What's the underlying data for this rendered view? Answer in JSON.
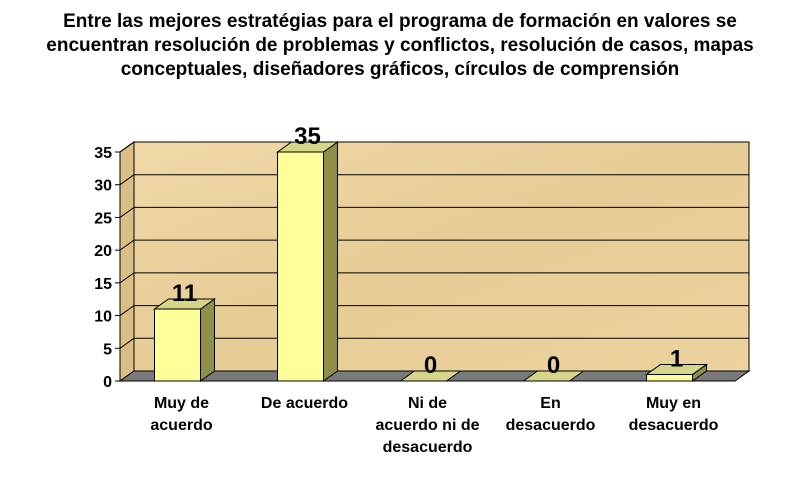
{
  "chart_data": {
    "type": "bar",
    "title": "Entre las mejores estratégias para el programa de formación en valores se encuentran resolución de problemas y conflictos, resolución de casos, mapas conceptuales, diseñadores gráficos, círculos de comprensión",
    "categories": [
      [
        "Muy de",
        "acuerdo"
      ],
      [
        "De acuerdo"
      ],
      [
        "Ni de",
        "acuerdo ni de",
        "desacuerdo"
      ],
      [
        "En",
        "desacuerdo"
      ],
      [
        "Muy en",
        "desacuerdo"
      ]
    ],
    "values": [
      11,
      35,
      0,
      0,
      1
    ],
    "data_labels": [
      "11",
      "35",
      "0",
      "0",
      "1"
    ],
    "ylim": [
      0,
      35
    ],
    "yticks": [
      0,
      5,
      10,
      15,
      20,
      25,
      30,
      35
    ],
    "xlabel": "",
    "ylabel": "",
    "grid": true,
    "legend": "none",
    "bar_style": "3d",
    "colors": {
      "bar_front": "#ffff99",
      "bar_side": "#8f8f4a",
      "bar_top": "#d6d68a",
      "plot_background": "#e8cf9a",
      "floor": "#7a7a7a",
      "grid": "#000000"
    }
  }
}
